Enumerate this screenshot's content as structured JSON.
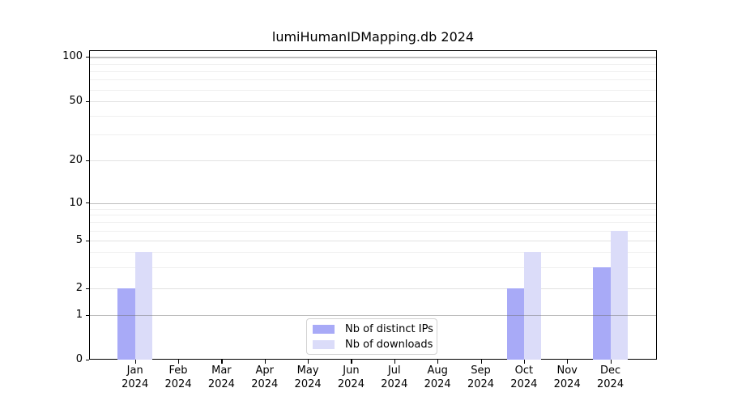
{
  "chart_data": {
    "type": "bar",
    "title": "lumiHumanIDMapping.db 2024",
    "categories": [
      "Jan",
      "Feb",
      "Mar",
      "Apr",
      "May",
      "Jun",
      "Jul",
      "Aug",
      "Sep",
      "Oct",
      "Nov",
      "Dec"
    ],
    "x_tick_year": "2024",
    "series": [
      {
        "name": "Nb of distinct IPs",
        "color": "#a8aaf7",
        "values": [
          2,
          0,
          0,
          0,
          0,
          0,
          0,
          0,
          0,
          2,
          0,
          3
        ]
      },
      {
        "name": "Nb of downloads",
        "color": "#dbdcf9",
        "values": [
          4,
          0,
          0,
          0,
          0,
          0,
          0,
          0,
          0,
          4,
          0,
          6
        ]
      }
    ],
    "yticks": [
      0,
      1,
      2,
      5,
      10,
      20,
      50,
      100
    ],
    "minor_gridlines": [
      3,
      4,
      6,
      7,
      8,
      9,
      30,
      40,
      60,
      70,
      80,
      90
    ],
    "decade_lines": [
      1,
      10,
      100
    ],
    "ylim": [
      0,
      110
    ],
    "yscale": "symlog",
    "grid": true,
    "legend_position": "lower center"
  }
}
